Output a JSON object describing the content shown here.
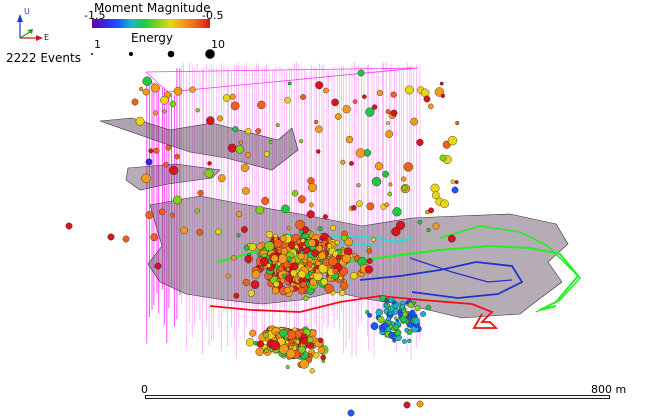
{
  "legend": {
    "magnitude_title": "Moment Magnitude",
    "magnitude_min": "-1.5",
    "magnitude_max": "-0.5",
    "energy_title": "Energy",
    "energy_min": "1",
    "energy_max": "10",
    "events_count": "2222 Events"
  },
  "orientation": {
    "up_label": "U",
    "east_label": "E"
  },
  "scale_bar": {
    "start_label": "0",
    "end_label": "800 m"
  },
  "colors": {
    "colormap": [
      "#6a00a8",
      "#3a22e0",
      "#1a55ff",
      "#17b7c9",
      "#1ec845",
      "#7ed31a",
      "#e8d418",
      "#f49a1c",
      "#f0601c",
      "#d8141c"
    ],
    "wireframe": "#ff33ff",
    "surface": "#6e5a6e",
    "tunnel_green": "#22ee22",
    "tunnel_blue": "#2233cc",
    "tunnel_red": "#ee1111",
    "tunnel_cyan": "#22dddd"
  }
}
